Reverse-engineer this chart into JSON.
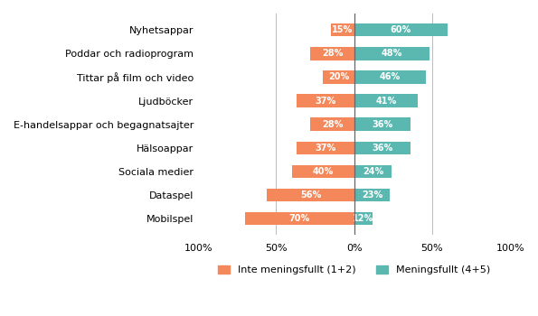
{
  "categories": [
    "Nyhetsappar",
    "Poddar och radioprogram",
    "Tittar på film och video",
    "Ljudböcker",
    "E-handelsappar och begagnatsajter",
    "Hälsoappar",
    "Sociala medier",
    "Dataspel",
    "Mobilspel"
  ],
  "inte_meningsfullt": [
    15,
    28,
    20,
    37,
    28,
    37,
    40,
    56,
    70
  ],
  "meningsfullt": [
    60,
    48,
    46,
    41,
    36,
    36,
    24,
    23,
    12
  ],
  "color_inte": "#F4885A",
  "color_menings": "#5BB8B0",
  "background_color": "#ffffff",
  "xlim": [
    -100,
    100
  ],
  "xticks": [
    -100,
    -50,
    0,
    50,
    100
  ],
  "xticklabels": [
    "100%",
    "50%",
    "0%",
    "50%",
    "100%"
  ],
  "legend_inte": "Inte meningsfullt (1+2)",
  "legend_menings": "Meningsfullt (4+5)",
  "bar_height": 0.55,
  "fontsize_labels": 8,
  "fontsize_ticks": 8,
  "fontsize_bar": 7
}
